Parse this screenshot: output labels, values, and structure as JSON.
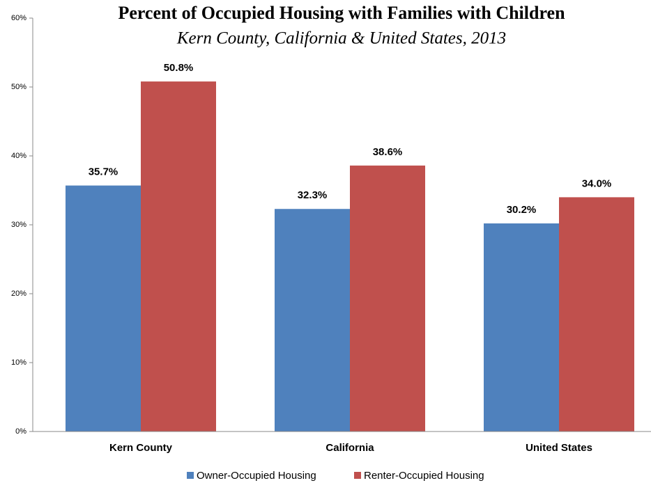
{
  "chart_data": {
    "type": "bar",
    "title": "Percent of Occupied Housing with Families with Children",
    "subtitle": "Kern County, California & United States, 2013",
    "categories": [
      "Kern County",
      "California",
      "United States"
    ],
    "series": [
      {
        "name": "Owner-Occupied Housing",
        "color": "#4f81bd",
        "values": [
          35.7,
          32.3,
          30.2
        ],
        "value_labels": [
          "35.7%",
          "32.3%",
          "30.2%"
        ]
      },
      {
        "name": "Renter-Occupied Housing",
        "color": "#c0504d",
        "values": [
          50.8,
          38.6,
          34.0
        ],
        "value_labels": [
          "50.8%",
          "38.6%",
          "34.0%"
        ]
      }
    ],
    "ylim": [
      0,
      60
    ],
    "yticks": [
      {
        "value": 0,
        "label": "0%"
      },
      {
        "value": 10,
        "label": "10%"
      },
      {
        "value": 20,
        "label": "20%"
      },
      {
        "value": 30,
        "label": "30%"
      },
      {
        "value": 40,
        "label": "40%"
      },
      {
        "value": 50,
        "label": "50%"
      },
      {
        "value": 60,
        "label": "60%"
      }
    ],
    "grid": false,
    "legend": "bottom"
  }
}
